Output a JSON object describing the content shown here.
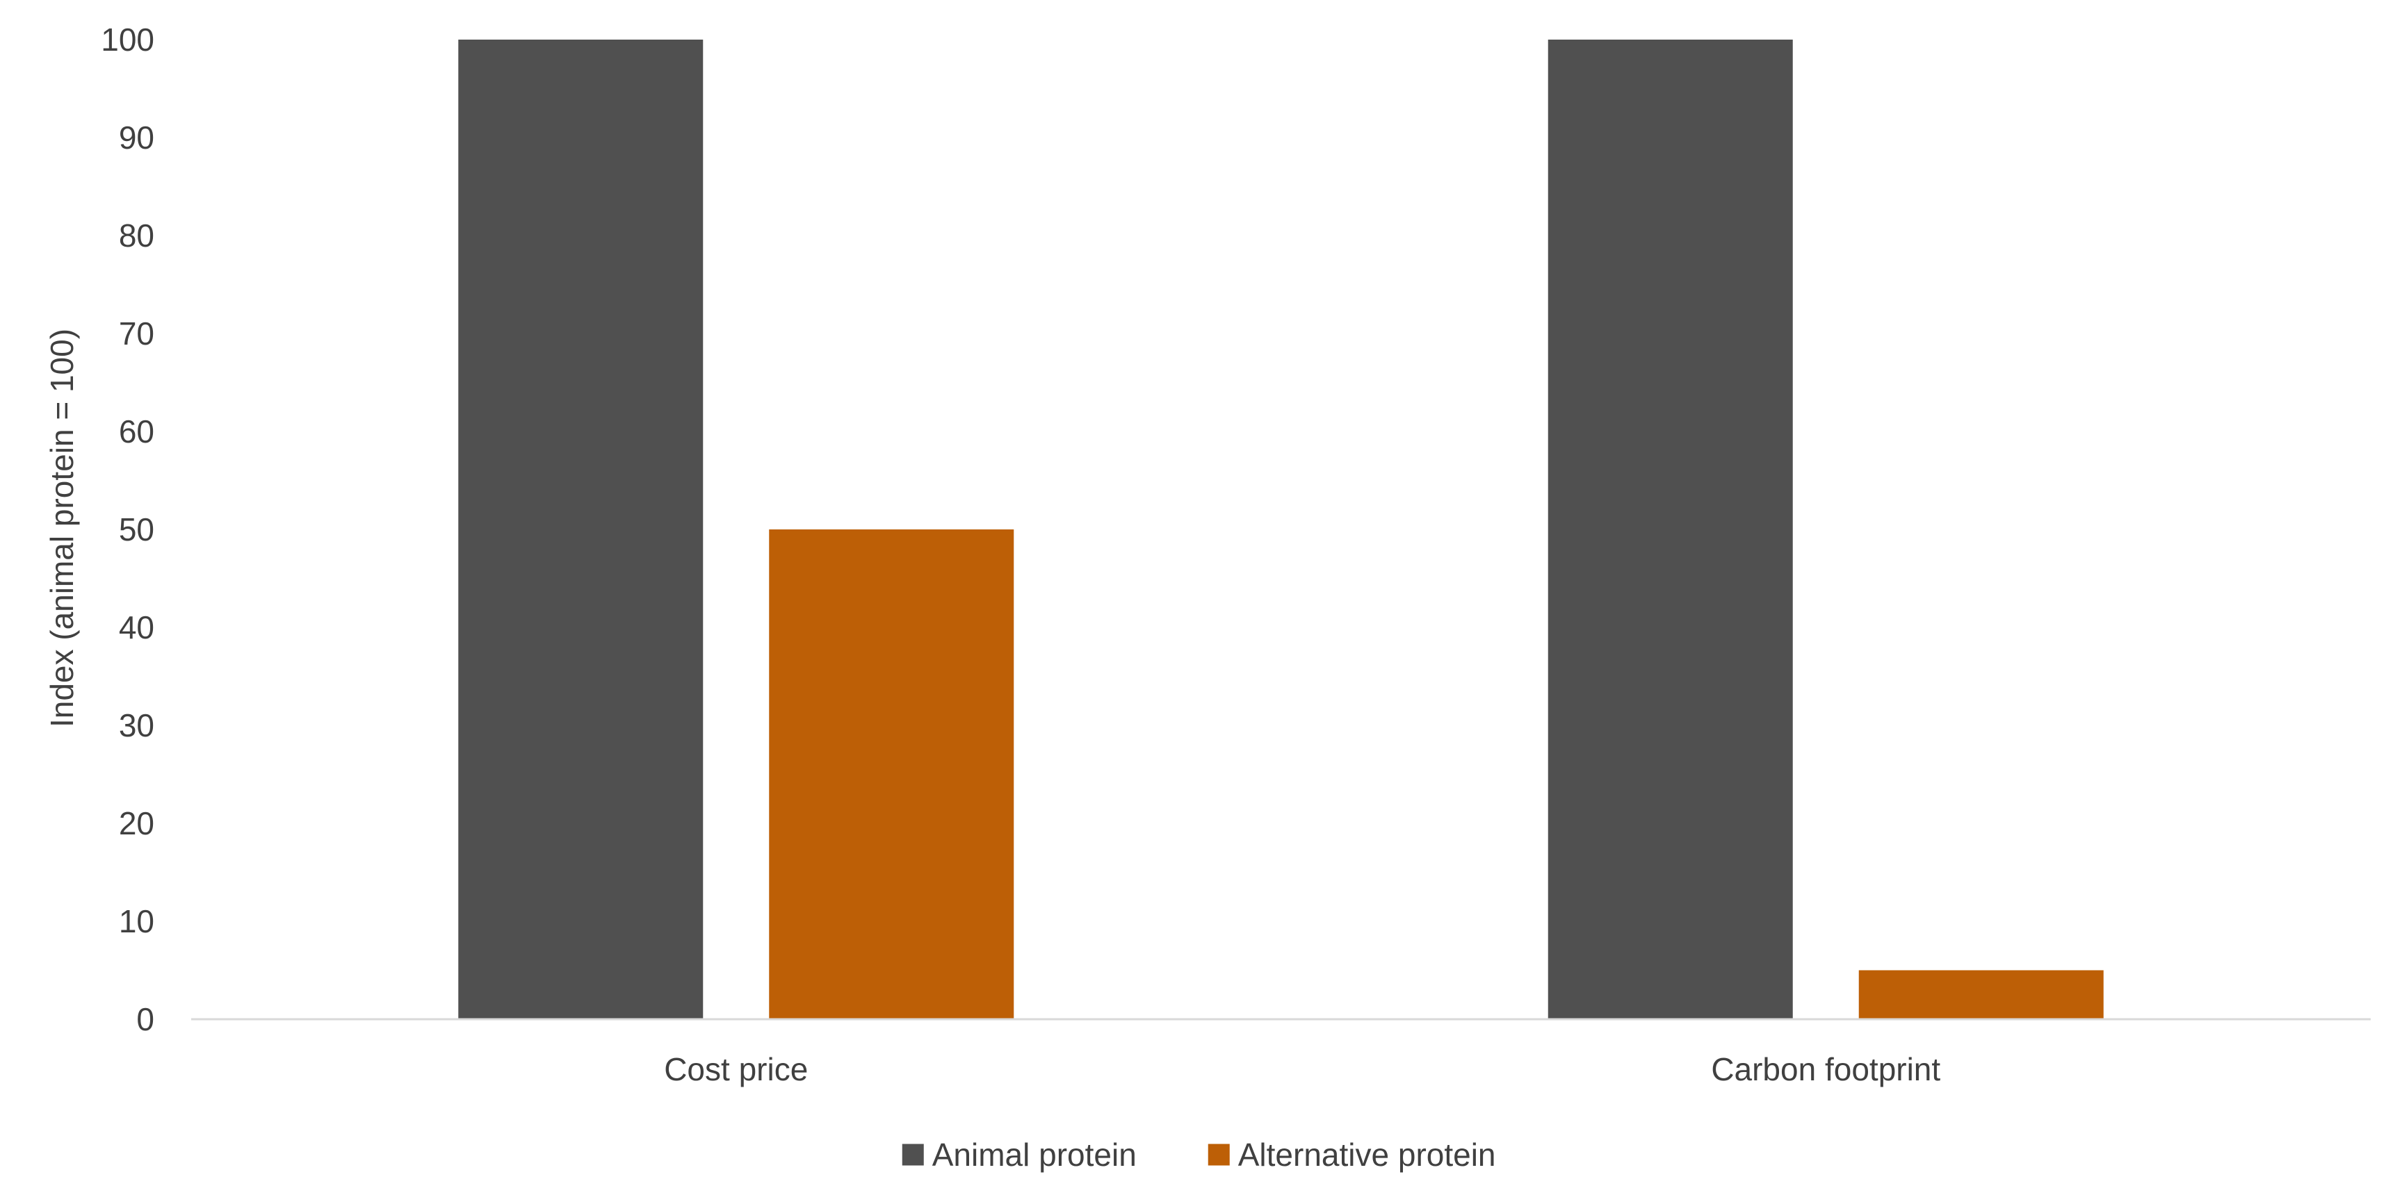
{
  "chart_data": {
    "type": "bar",
    "title": "",
    "xlabel": "",
    "ylabel": "Index (animal protein = 100)",
    "ylim": [
      0,
      100
    ],
    "yticks": [
      "0",
      "10",
      "20",
      "30",
      "40",
      "50",
      "60",
      "70",
      "80",
      "90",
      "100"
    ],
    "categories": [
      "Cost price",
      "Carbon footprint"
    ],
    "series": [
      {
        "name": "Animal protein",
        "values": [
          100,
          100
        ],
        "color": "#505050"
      },
      {
        "name": "Alternative protein",
        "values": [
          50,
          5
        ],
        "color": "#BD5F06"
      }
    ],
    "grid": false,
    "legend_position": "bottom"
  }
}
